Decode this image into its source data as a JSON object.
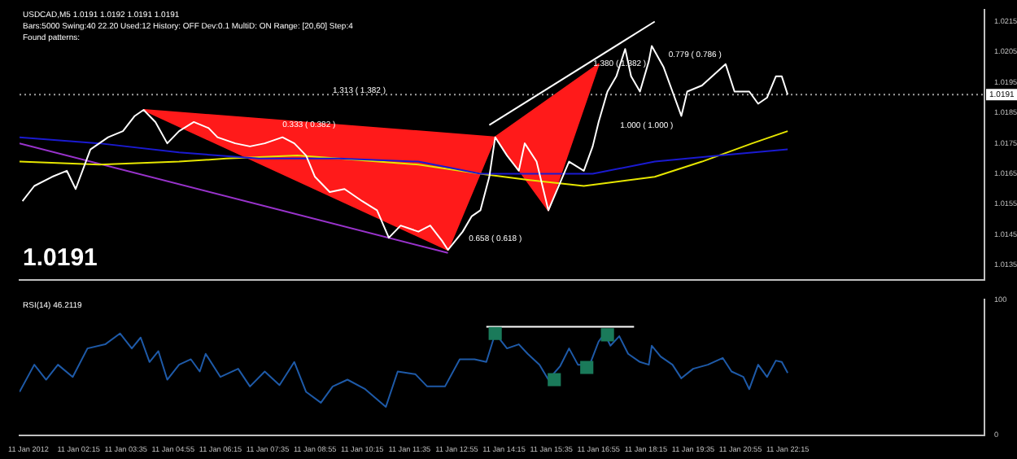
{
  "chart_data": [
    {
      "type": "line",
      "title": "USDCAD,M5 1.0191 1.0192 1.0191 1.0191",
      "subtitle": "Bars:5000 Swing:40 22.20 Used:12 History: OFF Dev:0.1 MultiD: ON Range: [20,60] Step:4",
      "annotations": [
        "Found patterns:",
        "1.0191",
        "1.313 ( 1.382 )",
        "0.333 ( 0.382 )",
        "0.658 ( 0.618 )",
        "1.380 ( 1.382 )",
        "0.779 ( 0.786 )",
        "1.000 ( 1.000 )"
      ],
      "xlim": [
        "2012-01-11T00:35",
        "2012-01-12T03:48"
      ],
      "ylim": [
        1.013,
        1.0219
      ],
      "yticks": [
        1.0135,
        1.0145,
        1.0155,
        1.0165,
        1.0175,
        1.0185,
        1.0195,
        1.0205,
        1.0215
      ],
      "tick_labels": "y",
      "grid": false,
      "legend": false,
      "ref_lines": [
        {
          "axis": "y",
          "value": 1.0191,
          "label": "1.0191",
          "color": "#a0a0a0",
          "line_style": "dotted"
        }
      ],
      "series": [
        {
          "type": "area",
          "color": "#ff1a1a",
          "x": [
            "2012-01-11T04:05",
            "2012-01-11T12:40",
            "2012-01-11T14:00",
            "2012-01-11T04:05"
          ],
          "values": [
            1.0186,
            1.014,
            1.0177,
            1.0186
          ]
        },
        {
          "type": "area",
          "color": "#ff1a1a",
          "x": [
            "2012-01-11T14:00",
            "2012-01-11T15:30",
            "2012-01-11T16:55",
            "2012-01-11T14:00"
          ],
          "values": [
            1.0177,
            1.0153,
            1.0201,
            1.0177
          ]
        },
        {
          "type": "line",
          "color": "#9933cc",
          "x": [
            "2012-01-11T00:35",
            "2012-01-11T12:40"
          ],
          "values": [
            1.0175,
            1.0139
          ]
        },
        {
          "type": "line",
          "color": "#ffffff",
          "x": [
            "2012-01-11T13:50",
            "2012-01-11T18:30"
          ],
          "values": [
            1.0181,
            1.0215
          ]
        },
        {
          "type": "line",
          "color": "#e6e600",
          "x": [
            "2012-01-11T00:35",
            "2012-01-11T02:50",
            "2012-01-11T05:05",
            "2012-01-11T06:25",
            "2012-01-11T08:25",
            "2012-01-11T09:35",
            "2012-01-11T11:50",
            "2012-01-11T13:35",
            "2012-01-11T14:55",
            "2012-01-11T16:30",
            "2012-01-11T17:10",
            "2012-01-11T18:30",
            "2012-01-11T19:50",
            "2012-01-11T21:15",
            "2012-01-11T22:15"
          ],
          "values": [
            1.0169,
            1.0168,
            1.0169,
            1.017,
            1.0171,
            1.017,
            1.0168,
            1.0165,
            1.0163,
            1.0161,
            1.0162,
            1.0164,
            1.0169,
            1.0175,
            1.0179
          ]
        },
        {
          "type": "line",
          "color": "#1a1ad0",
          "x": [
            "2012-01-11T00:35",
            "2012-01-11T02:50",
            "2012-01-11T05:05",
            "2012-01-11T07:20",
            "2012-01-11T09:35",
            "2012-01-11T11:50",
            "2012-01-11T13:35",
            "2012-01-11T14:55",
            "2012-01-11T16:45",
            "2012-01-11T18:30",
            "2012-01-11T20:20",
            "2012-01-11T22:15"
          ],
          "values": [
            1.0177,
            1.0175,
            1.0172,
            1.017,
            1.017,
            1.0169,
            1.0165,
            1.0165,
            1.0165,
            1.0169,
            1.0171,
            1.0173
          ]
        },
        {
          "type": "line",
          "color": "#ffffff",
          "x": [
            "2012-01-11T00:40",
            "2012-01-11T01:00",
            "2012-01-11T01:30",
            "2012-01-11T01:55",
            "2012-01-11T02:10",
            "2012-01-11T02:35",
            "2012-01-11T03:05",
            "2012-01-11T03:30",
            "2012-01-11T03:50",
            "2012-01-11T04:05",
            "2012-01-11T04:25",
            "2012-01-11T04:45",
            "2012-01-11T05:05",
            "2012-01-11T05:30",
            "2012-01-11T05:55",
            "2012-01-11T06:10",
            "2012-01-11T06:40",
            "2012-01-11T07:05",
            "2012-01-11T07:30",
            "2012-01-11T08:00",
            "2012-01-11T08:20",
            "2012-01-11T08:40",
            "2012-01-11T08:55",
            "2012-01-11T09:20",
            "2012-01-11T09:45",
            "2012-01-11T10:15",
            "2012-01-11T10:40",
            "2012-01-11T11:00",
            "2012-01-11T11:20",
            "2012-01-11T11:50",
            "2012-01-11T12:10",
            "2012-01-11T12:30",
            "2012-01-11T12:40",
            "2012-01-11T13:05",
            "2012-01-11T13:20",
            "2012-01-11T13:35",
            "2012-01-11T13:50",
            "2012-01-11T14:00",
            "2012-01-11T14:20",
            "2012-01-11T14:40",
            "2012-01-11T14:50",
            "2012-01-11T15:10",
            "2012-01-11T15:30",
            "2012-01-11T16:05",
            "2012-01-11T16:30",
            "2012-01-11T16:45",
            "2012-01-11T16:55",
            "2012-01-11T17:10",
            "2012-01-11T17:25",
            "2012-01-11T17:40",
            "2012-01-11T17:50",
            "2012-01-11T18:05",
            "2012-01-11T18:20",
            "2012-01-11T18:25",
            "2012-01-11T18:45",
            "2012-01-11T19:00",
            "2012-01-11T19:15",
            "2012-01-11T19:25",
            "2012-01-11T19:50",
            "2012-01-11T20:30",
            "2012-01-11T20:45",
            "2012-01-11T21:10",
            "2012-01-11T21:25",
            "2012-01-11T21:40",
            "2012-01-11T21:55",
            "2012-01-11T22:05",
            "2012-01-11T22:15"
          ],
          "values": [
            1.0156,
            1.0161,
            1.0164,
            1.0166,
            1.016,
            1.0173,
            1.0177,
            1.0179,
            1.0184,
            1.0186,
            1.0182,
            1.0175,
            1.0179,
            1.0182,
            1.018,
            1.0177,
            1.0175,
            1.0174,
            1.0175,
            1.0177,
            1.0175,
            1.0171,
            1.0164,
            1.0159,
            1.016,
            1.0156,
            1.0153,
            1.0144,
            1.0148,
            1.0146,
            1.0148,
            1.0143,
            1.014,
            1.0146,
            1.0151,
            1.0153,
            1.0164,
            1.0177,
            1.0171,
            1.0166,
            1.0175,
            1.0169,
            1.0153,
            1.0169,
            1.0166,
            1.0174,
            1.0182,
            1.0192,
            1.0197,
            1.0206,
            1.0197,
            1.0192,
            1.0202,
            1.0207,
            1.02,
            1.0192,
            1.0184,
            1.0192,
            1.0194,
            1.0201,
            1.0192,
            1.0192,
            1.0188,
            1.019,
            1.0197,
            1.0197,
            1.0191
          ]
        }
      ]
    },
    {
      "type": "line",
      "title": "RSI(14) 46.2119",
      "xlim": [
        "2012-01-11T00:35",
        "2012-01-12T03:48"
      ],
      "ylim": [
        0,
        100
      ],
      "yticks": [
        0,
        100
      ],
      "grid": false,
      "legend": false,
      "xticks": [
        {
          "value": "2012-01-11T00:50",
          "label": "11 Jan 2012"
        },
        {
          "value": "2012-01-11T02:15",
          "label": "11 Jan 02:15"
        },
        {
          "value": "2012-01-11T03:35",
          "label": "11 Jan 03:35"
        },
        {
          "value": "2012-01-11T04:55",
          "label": "11 Jan 04:55"
        },
        {
          "value": "2012-01-11T06:15",
          "label": "11 Jan 06:15"
        },
        {
          "value": "2012-01-11T07:35",
          "label": "11 Jan 07:35"
        },
        {
          "value": "2012-01-11T08:55",
          "label": "11 Jan 08:55"
        },
        {
          "value": "2012-01-11T10:15",
          "label": "11 Jan 10:15"
        },
        {
          "value": "2012-01-11T11:35",
          "label": "11 Jan 11:35"
        },
        {
          "value": "2012-01-11T12:55",
          "label": "11 Jan 12:55"
        },
        {
          "value": "2012-01-11T14:15",
          "label": "11 Jan 14:15"
        },
        {
          "value": "2012-01-11T15:35",
          "label": "11 Jan 15:35"
        },
        {
          "value": "2012-01-11T16:55",
          "label": "11 Jan 16:55"
        },
        {
          "value": "2012-01-11T18:15",
          "label": "11 Jan 18:15"
        },
        {
          "value": "2012-01-11T19:35",
          "label": "11 Jan 19:35"
        },
        {
          "value": "2012-01-11T20:55",
          "label": "11 Jan 20:55"
        },
        {
          "value": "2012-01-11T22:15",
          "label": "11 Jan 22:15"
        }
      ],
      "series": [
        {
          "type": "line",
          "color": "#1e5aa8",
          "x": [
            "2012-01-11T00:35",
            "2012-01-11T01:00",
            "2012-01-11T01:20",
            "2012-01-11T01:40",
            "2012-01-11T02:05",
            "2012-01-11T02:30",
            "2012-01-11T03:00",
            "2012-01-11T03:25",
            "2012-01-11T03:45",
            "2012-01-11T04:00",
            "2012-01-11T04:15",
            "2012-01-11T04:30",
            "2012-01-11T04:45",
            "2012-01-11T05:05",
            "2012-01-11T05:25",
            "2012-01-11T05:40",
            "2012-01-11T05:50",
            "2012-01-11T06:15",
            "2012-01-11T06:45",
            "2012-01-11T07:05",
            "2012-01-11T07:30",
            "2012-01-11T07:55",
            "2012-01-11T08:20",
            "2012-01-11T08:40",
            "2012-01-11T09:05",
            "2012-01-11T09:25",
            "2012-01-11T09:50",
            "2012-01-11T10:20",
            "2012-01-11T10:55",
            "2012-01-11T11:15",
            "2012-01-11T11:45",
            "2012-01-11T12:05",
            "2012-01-11T12:35",
            "2012-01-11T13:00",
            "2012-01-11T13:25",
            "2012-01-11T13:45",
            "2012-01-11T14:00",
            "2012-01-11T14:20",
            "2012-01-11T14:40",
            "2012-01-11T14:55",
            "2012-01-11T15:15",
            "2012-01-11T15:30",
            "2012-01-11T15:50",
            "2012-01-11T16:05",
            "2012-01-11T16:20",
            "2012-01-11T16:40",
            "2012-01-11T16:55",
            "2012-01-11T17:05",
            "2012-01-11T17:15",
            "2012-01-11T17:30",
            "2012-01-11T17:45",
            "2012-01-11T18:05",
            "2012-01-11T18:20",
            "2012-01-11T18:25",
            "2012-01-11T18:40",
            "2012-01-11T19:00",
            "2012-01-11T19:15",
            "2012-01-11T19:35",
            "2012-01-11T20:00",
            "2012-01-11T20:25",
            "2012-01-11T20:40",
            "2012-01-11T21:00",
            "2012-01-11T21:10",
            "2012-01-11T21:25",
            "2012-01-11T21:40",
            "2012-01-11T21:55",
            "2012-01-11T22:05",
            "2012-01-11T22:15"
          ],
          "values": [
            32,
            52,
            41,
            52,
            43,
            64,
            67,
            75,
            64,
            72,
            54,
            62,
            41,
            52,
            56,
            47,
            60,
            43,
            49,
            36,
            47,
            37,
            54,
            32,
            24,
            36,
            41,
            34,
            21,
            47,
            45,
            36,
            36,
            56,
            56,
            54,
            75,
            64,
            67,
            60,
            52,
            41,
            51,
            64,
            52,
            52,
            69,
            75,
            66,
            73,
            60,
            54,
            52,
            66,
            58,
            52,
            42,
            49,
            52,
            57,
            47,
            43,
            34,
            52,
            43,
            55,
            54,
            46
          ]
        },
        {
          "type": "line",
          "color": "#ffffff",
          "x": [
            "2012-01-11T13:45",
            "2012-01-11T17:55"
          ],
          "values": [
            80,
            80
          ]
        },
        {
          "type": "scatter",
          "marker": "square",
          "color": "#1a7a5a",
          "x": [
            "2012-01-11T14:00",
            "2012-01-11T15:40",
            "2012-01-11T16:35",
            "2012-01-11T17:10"
          ],
          "values": [
            75,
            41,
            50,
            74
          ]
        }
      ]
    }
  ]
}
